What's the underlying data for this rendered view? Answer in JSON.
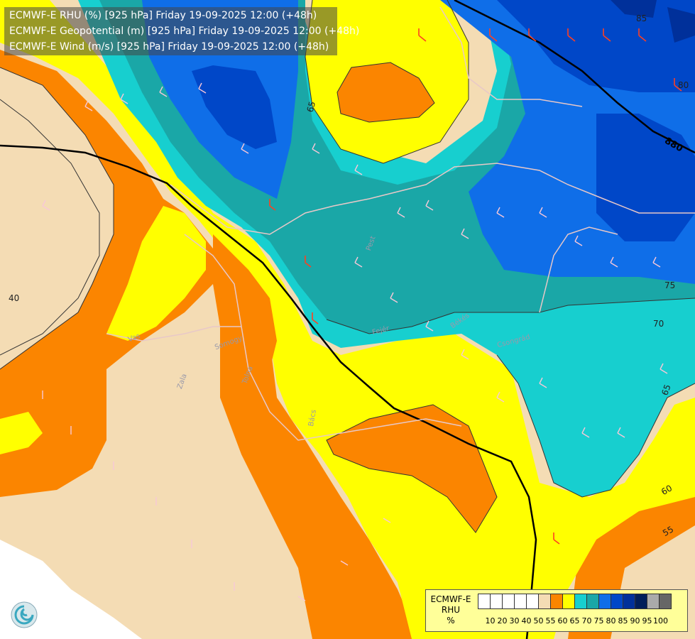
{
  "titles": [
    "ECMWF-E RHU (%) [925 hPa] Friday 19-09-2025 12:00 (+48h)",
    "ECMWF-E Geopotential (m) [925 hPa] Friday 19-09-2025 12:00 (+48h)",
    "ECMWF-E Wind (m/s) [925 hPa] Friday 19-09-2025 12:00 (+48h)"
  ],
  "legend": {
    "title_lines": [
      "ECMWF-E",
      "RHU",
      "%"
    ],
    "colors": [
      "#ffffff",
      "#ffffff",
      "#ffffff",
      "#ffffff",
      "#ffffff",
      "#f4dcb4",
      "#fb8500",
      "#ffff00",
      "#17cfcf",
      "#1aa7a7",
      "#0f6ee8",
      "#0047c8",
      "#00309a",
      "#001e5a",
      "#aaaaaa",
      "#666666"
    ],
    "ticks": [
      "10",
      "20",
      "30",
      "40",
      "50",
      "55",
      "60",
      "65",
      "70",
      "75",
      "80",
      "85",
      "90",
      "95",
      "100"
    ]
  },
  "contour_labels": [
    "40",
    "65",
    "75",
    "70",
    "65",
    "60",
    "55",
    "85",
    "80",
    "880"
  ],
  "place_labels": [
    "Vas",
    "Zala",
    "Somogy",
    "Tolna",
    "Bács",
    "Pest",
    "Békés",
    "Fejér",
    "Csongrád"
  ]
}
